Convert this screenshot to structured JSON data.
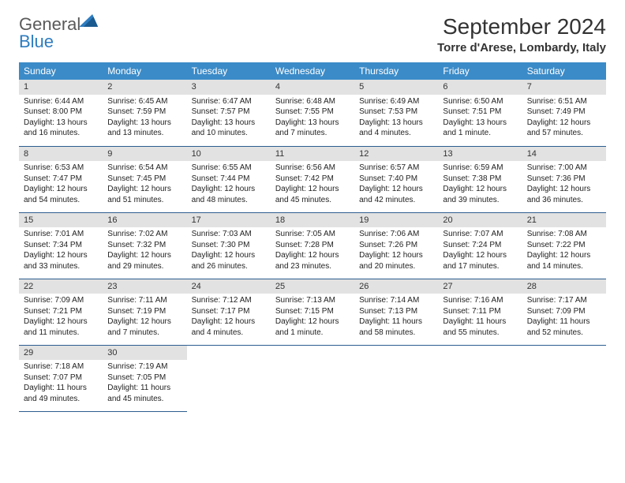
{
  "logo": {
    "text1": "General",
    "text2": "Blue"
  },
  "title": "September 2024",
  "location": "Torre d'Arese, Lombardy, Italy",
  "colors": {
    "header_bg": "#3b8bc8",
    "header_text": "#ffffff",
    "daynum_bg": "#e2e2e2",
    "row_border": "#2d5d8f",
    "logo_blue": "#2d7cc0"
  },
  "weekdays": [
    "Sunday",
    "Monday",
    "Tuesday",
    "Wednesday",
    "Thursday",
    "Friday",
    "Saturday"
  ],
  "days": [
    {
      "n": "1",
      "sr": "6:44 AM",
      "ss": "8:00 PM",
      "dl": "13 hours and 16 minutes."
    },
    {
      "n": "2",
      "sr": "6:45 AM",
      "ss": "7:59 PM",
      "dl": "13 hours and 13 minutes."
    },
    {
      "n": "3",
      "sr": "6:47 AM",
      "ss": "7:57 PM",
      "dl": "13 hours and 10 minutes."
    },
    {
      "n": "4",
      "sr": "6:48 AM",
      "ss": "7:55 PM",
      "dl": "13 hours and 7 minutes."
    },
    {
      "n": "5",
      "sr": "6:49 AM",
      "ss": "7:53 PM",
      "dl": "13 hours and 4 minutes."
    },
    {
      "n": "6",
      "sr": "6:50 AM",
      "ss": "7:51 PM",
      "dl": "13 hours and 1 minute."
    },
    {
      "n": "7",
      "sr": "6:51 AM",
      "ss": "7:49 PM",
      "dl": "12 hours and 57 minutes."
    },
    {
      "n": "8",
      "sr": "6:53 AM",
      "ss": "7:47 PM",
      "dl": "12 hours and 54 minutes."
    },
    {
      "n": "9",
      "sr": "6:54 AM",
      "ss": "7:45 PM",
      "dl": "12 hours and 51 minutes."
    },
    {
      "n": "10",
      "sr": "6:55 AM",
      "ss": "7:44 PM",
      "dl": "12 hours and 48 minutes."
    },
    {
      "n": "11",
      "sr": "6:56 AM",
      "ss": "7:42 PM",
      "dl": "12 hours and 45 minutes."
    },
    {
      "n": "12",
      "sr": "6:57 AM",
      "ss": "7:40 PM",
      "dl": "12 hours and 42 minutes."
    },
    {
      "n": "13",
      "sr": "6:59 AM",
      "ss": "7:38 PM",
      "dl": "12 hours and 39 minutes."
    },
    {
      "n": "14",
      "sr": "7:00 AM",
      "ss": "7:36 PM",
      "dl": "12 hours and 36 minutes."
    },
    {
      "n": "15",
      "sr": "7:01 AM",
      "ss": "7:34 PM",
      "dl": "12 hours and 33 minutes."
    },
    {
      "n": "16",
      "sr": "7:02 AM",
      "ss": "7:32 PM",
      "dl": "12 hours and 29 minutes."
    },
    {
      "n": "17",
      "sr": "7:03 AM",
      "ss": "7:30 PM",
      "dl": "12 hours and 26 minutes."
    },
    {
      "n": "18",
      "sr": "7:05 AM",
      "ss": "7:28 PM",
      "dl": "12 hours and 23 minutes."
    },
    {
      "n": "19",
      "sr": "7:06 AM",
      "ss": "7:26 PM",
      "dl": "12 hours and 20 minutes."
    },
    {
      "n": "20",
      "sr": "7:07 AM",
      "ss": "7:24 PM",
      "dl": "12 hours and 17 minutes."
    },
    {
      "n": "21",
      "sr": "7:08 AM",
      "ss": "7:22 PM",
      "dl": "12 hours and 14 minutes."
    },
    {
      "n": "22",
      "sr": "7:09 AM",
      "ss": "7:21 PM",
      "dl": "12 hours and 11 minutes."
    },
    {
      "n": "23",
      "sr": "7:11 AM",
      "ss": "7:19 PM",
      "dl": "12 hours and 7 minutes."
    },
    {
      "n": "24",
      "sr": "7:12 AM",
      "ss": "7:17 PM",
      "dl": "12 hours and 4 minutes."
    },
    {
      "n": "25",
      "sr": "7:13 AM",
      "ss": "7:15 PM",
      "dl": "12 hours and 1 minute."
    },
    {
      "n": "26",
      "sr": "7:14 AM",
      "ss": "7:13 PM",
      "dl": "11 hours and 58 minutes."
    },
    {
      "n": "27",
      "sr": "7:16 AM",
      "ss": "7:11 PM",
      "dl": "11 hours and 55 minutes."
    },
    {
      "n": "28",
      "sr": "7:17 AM",
      "ss": "7:09 PM",
      "dl": "11 hours and 52 minutes."
    },
    {
      "n": "29",
      "sr": "7:18 AM",
      "ss": "7:07 PM",
      "dl": "11 hours and 49 minutes."
    },
    {
      "n": "30",
      "sr": "7:19 AM",
      "ss": "7:05 PM",
      "dl": "11 hours and 45 minutes."
    }
  ],
  "labels": {
    "sunrise": "Sunrise: ",
    "sunset": "Sunset: ",
    "daylight": "Daylight: "
  }
}
